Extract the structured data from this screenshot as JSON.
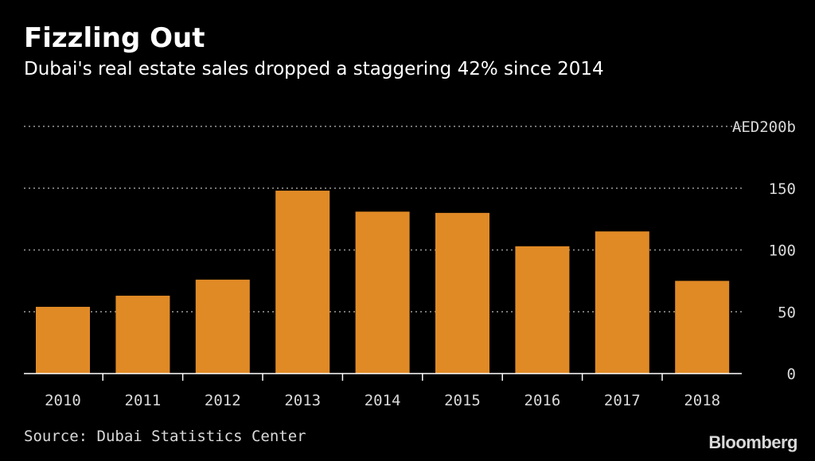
{
  "header": {
    "title": "Fizzling Out",
    "subtitle": "Dubai's real estate sales dropped a staggering 42% since 2014"
  },
  "footer": {
    "source": "Source: Dubai Statistics Center",
    "brand": "Bloomberg"
  },
  "colors": {
    "background": "#000000",
    "bar": "#e08a26",
    "grid": "#9a9a9a",
    "text": "#ffffff",
    "muted": "#d9d9d9"
  },
  "chart_data": {
    "type": "bar",
    "title": "Fizzling Out",
    "subtitle": "Dubai's real estate sales dropped a staggering 42% since 2014",
    "xlabel": "",
    "ylabel": "",
    "categories": [
      "2010",
      "2011",
      "2012",
      "2013",
      "2014",
      "2015",
      "2016",
      "2017",
      "2018"
    ],
    "series": [
      {
        "name": "Real estate sales",
        "values": [
          54,
          63,
          76,
          148,
          131,
          130,
          103,
          115,
          75
        ]
      }
    ],
    "ylim": [
      0,
      200
    ],
    "yticks": [
      0,
      50,
      100,
      150,
      200
    ],
    "ytick_labels": [
      "0",
      "50",
      "100",
      "150",
      "AED200b"
    ],
    "grid": true,
    "legend": "none"
  }
}
